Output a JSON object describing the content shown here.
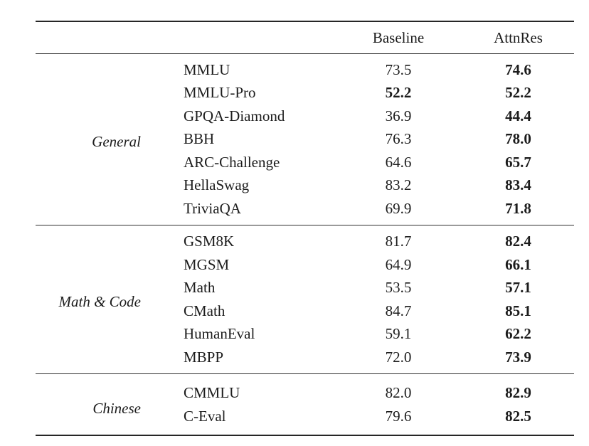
{
  "page": {
    "background": "#ffffff",
    "text_color": "#1c1c1c",
    "rule_color": "#2e2e2e"
  },
  "table": {
    "header": {
      "baseline": "Baseline",
      "attnres": "AttnRes"
    },
    "groups": [
      {
        "label": "General",
        "rows": [
          {
            "benchmark": "MMLU",
            "baseline": "73.5",
            "attnres": "74.6",
            "baseline_bold": false,
            "attnres_bold": true
          },
          {
            "benchmark": "MMLU-Pro",
            "baseline": "52.2",
            "attnres": "52.2",
            "baseline_bold": true,
            "attnres_bold": true
          },
          {
            "benchmark": "GPQA-Diamond",
            "baseline": "36.9",
            "attnres": "44.4",
            "baseline_bold": false,
            "attnres_bold": true
          },
          {
            "benchmark": "BBH",
            "baseline": "76.3",
            "attnres": "78.0",
            "baseline_bold": false,
            "attnres_bold": true
          },
          {
            "benchmark": "ARC-Challenge",
            "baseline": "64.6",
            "attnres": "65.7",
            "baseline_bold": false,
            "attnres_bold": true
          },
          {
            "benchmark": "HellaSwag",
            "baseline": "83.2",
            "attnres": "83.4",
            "baseline_bold": false,
            "attnres_bold": true
          },
          {
            "benchmark": "TriviaQA",
            "baseline": "69.9",
            "attnres": "71.8",
            "baseline_bold": false,
            "attnres_bold": true
          }
        ]
      },
      {
        "label": "Math & Code",
        "rows": [
          {
            "benchmark": "GSM8K",
            "baseline": "81.7",
            "attnres": "82.4",
            "baseline_bold": false,
            "attnres_bold": true
          },
          {
            "benchmark": "MGSM",
            "baseline": "64.9",
            "attnres": "66.1",
            "baseline_bold": false,
            "attnres_bold": true
          },
          {
            "benchmark": "Math",
            "baseline": "53.5",
            "attnres": "57.1",
            "baseline_bold": false,
            "attnres_bold": true
          },
          {
            "benchmark": "CMath",
            "baseline": "84.7",
            "attnres": "85.1",
            "baseline_bold": false,
            "attnres_bold": true
          },
          {
            "benchmark": "HumanEval",
            "baseline": "59.1",
            "attnres": "62.2",
            "baseline_bold": false,
            "attnres_bold": true
          },
          {
            "benchmark": "MBPP",
            "baseline": "72.0",
            "attnres": "73.9",
            "baseline_bold": false,
            "attnres_bold": true
          }
        ]
      },
      {
        "label": "Chinese",
        "rows": [
          {
            "benchmark": "CMMLU",
            "baseline": "82.0",
            "attnres": "82.9",
            "baseline_bold": false,
            "attnres_bold": true
          },
          {
            "benchmark": "C-Eval",
            "baseline": "79.6",
            "attnres": "82.5",
            "baseline_bold": false,
            "attnres_bold": true
          }
        ]
      }
    ]
  }
}
